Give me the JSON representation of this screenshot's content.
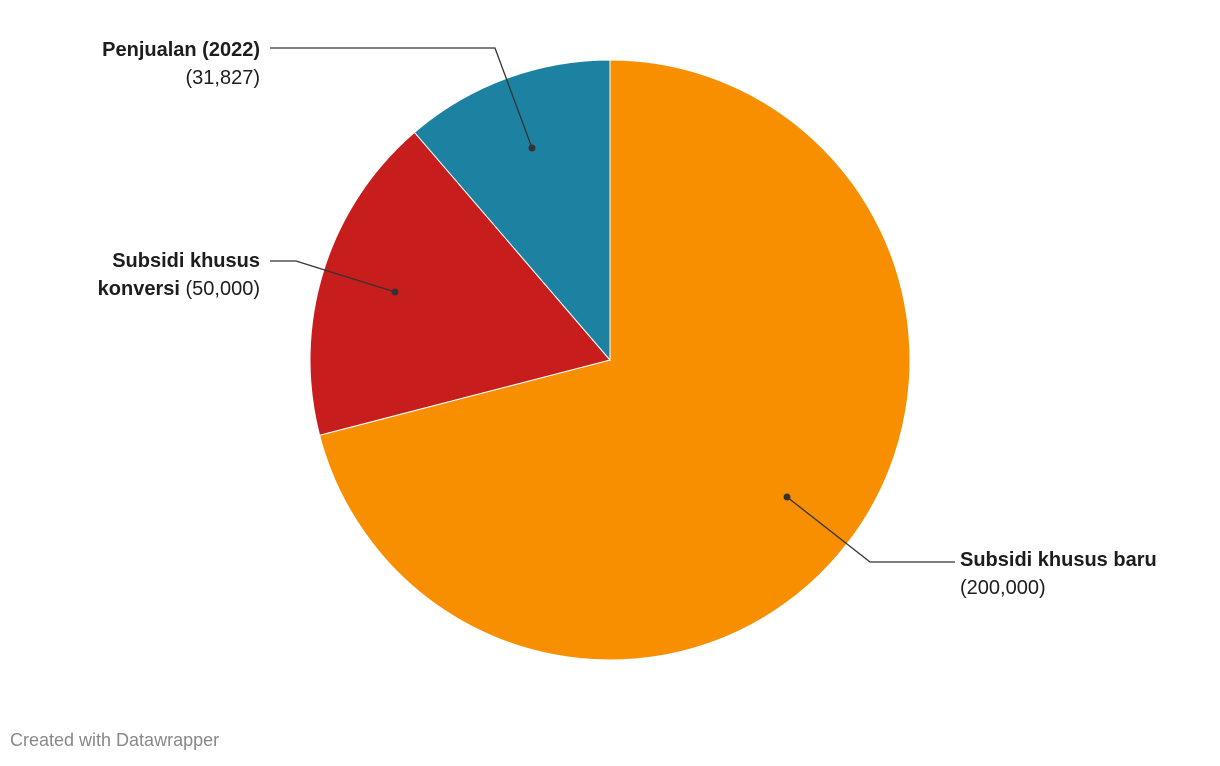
{
  "chart_data": {
    "type": "pie",
    "categories": [
      "Subsidi khusus baru",
      "Subsidi khusus konversi",
      "Penjualan (2022)"
    ],
    "values": [
      200000,
      50000,
      31827
    ],
    "value_labels": [
      "(200,000)",
      "(50,000)",
      "(31,827)"
    ],
    "colors": [
      "#f78f00",
      "#c71e1d",
      "#1d81a2"
    ],
    "footer": "Created with Datawrapper"
  }
}
